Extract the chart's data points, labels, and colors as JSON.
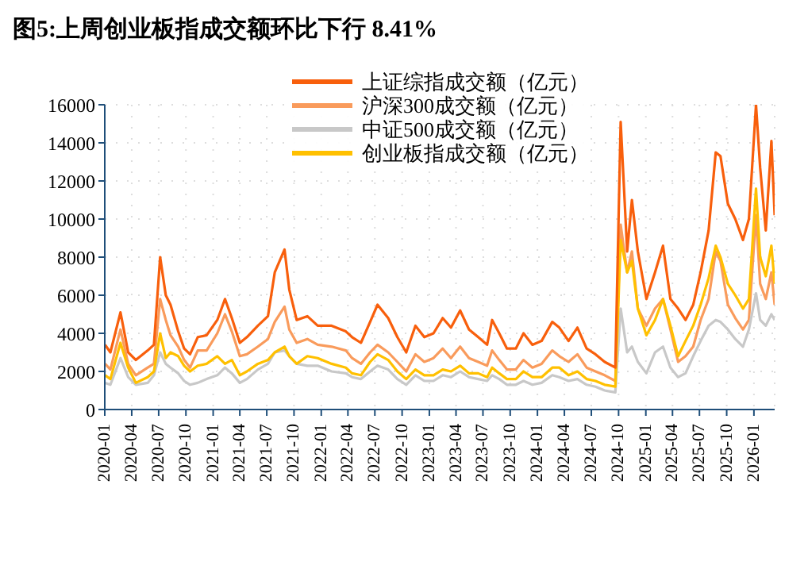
{
  "chart_data": {
    "type": "line",
    "title": "图5:上周创业板指成交额环比下行 8.41%",
    "x": [
      "2020-01-02",
      "2020-01-20",
      "2020-02-23",
      "2020-03-20",
      "2020-04-15",
      "2020-05-25",
      "2020-06-15",
      "2020-07-06",
      "2020-07-25",
      "2020-08-10",
      "2020-09-05",
      "2020-09-25",
      "2020-10-15",
      "2020-11-10",
      "2020-12-10",
      "2021-01-15",
      "2021-02-10",
      "2021-03-05",
      "2021-04-01",
      "2021-04-25",
      "2021-06-01",
      "2021-07-05",
      "2021-07-28",
      "2021-08-30",
      "2021-09-15",
      "2021-10-10",
      "2021-11-15",
      "2021-12-20",
      "2022-02-05",
      "2022-03-25",
      "2022-04-15",
      "2022-05-15",
      "2022-06-15",
      "2022-07-10",
      "2022-08-15",
      "2022-09-15",
      "2022-10-15",
      "2022-11-15",
      "2022-12-15",
      "2023-01-15",
      "2023-02-15",
      "2023-03-15",
      "2023-04-15",
      "2023-05-15",
      "2023-06-15",
      "2023-07-15",
      "2023-08-01",
      "2023-08-25",
      "2023-09-20",
      "2023-10-20",
      "2023-11-15",
      "2023-12-15",
      "2024-01-15",
      "2024-02-20",
      "2024-03-15",
      "2024-04-15",
      "2024-05-15",
      "2024-06-15",
      "2024-07-15",
      "2024-08-15",
      "2024-09-20",
      "2024-10-08",
      "2024-10-30",
      "2024-11-15",
      "2024-12-05",
      "2025-01-03",
      "2025-02-01",
      "2025-02-28",
      "2025-03-25",
      "2025-04-20",
      "2025-05-15",
      "2025-06-10",
      "2025-07-05",
      "2025-08-01",
      "2025-08-25",
      "2025-09-10",
      "2025-10-05",
      "2025-10-30",
      "2025-11-25",
      "2025-12-15",
      "2026-01-08",
      "2026-01-22",
      "2026-02-10",
      "2026-03-01",
      "2026-03-12"
    ],
    "series": [
      {
        "name": "上证综指成交额（亿元）",
        "color": "#f85f0c",
        "values": [
          3400,
          3000,
          5100,
          3000,
          2600,
          3100,
          3400,
          8000,
          6000,
          5500,
          4100,
          3200,
          2900,
          3800,
          3900,
          4700,
          5800,
          4800,
          3500,
          3800,
          4400,
          4900,
          7200,
          8400,
          6300,
          4700,
          4900,
          4400,
          4400,
          4100,
          3800,
          3500,
          4600,
          5500,
          4800,
          3800,
          3000,
          4400,
          3800,
          4000,
          4800,
          4300,
          5200,
          4200,
          3800,
          3400,
          4700,
          4000,
          3200,
          3200,
          4000,
          3400,
          3600,
          4600,
          4300,
          3600,
          4300,
          3200,
          2900,
          2500,
          2200,
          15100,
          8300,
          11000,
          8300,
          5800,
          7200,
          8600,
          5800,
          5300,
          4700,
          5500,
          7200,
          9400,
          13500,
          13300,
          10800,
          10000,
          8900,
          10000,
          16000,
          12700,
          9400,
          14100,
          10200
        ]
      },
      {
        "name": "沪深300成交额（亿元）",
        "color": "#f99b5c",
        "values": [
          2400,
          2100,
          4200,
          2400,
          1800,
          2200,
          2400,
          5800,
          4700,
          3900,
          3300,
          2600,
          2200,
          3100,
          3100,
          4000,
          5000,
          4100,
          2800,
          2900,
          3300,
          3700,
          4600,
          5400,
          4200,
          3500,
          3700,
          3400,
          3300,
          3100,
          2700,
          2400,
          3000,
          3400,
          3000,
          2500,
          2000,
          2900,
          2500,
          2700,
          3200,
          2700,
          3300,
          2700,
          2500,
          2300,
          3100,
          2600,
          2100,
          2100,
          2600,
          2200,
          2400,
          3100,
          2800,
          2500,
          2900,
          2200,
          2000,
          1800,
          1500,
          9700,
          7200,
          8300,
          5300,
          4400,
          5300,
          5800,
          4200,
          2500,
          2800,
          3300,
          4700,
          5800,
          8300,
          7800,
          5500,
          4800,
          4200,
          4700,
          10200,
          6600,
          5800,
          7200,
          5500
        ]
      },
      {
        "name": "中证500成交额（亿元）",
        "color": "#c8c8c8",
        "values": [
          1400,
          1300,
          2700,
          1700,
          1300,
          1400,
          1800,
          3000,
          2400,
          2200,
          1900,
          1500,
          1300,
          1400,
          1600,
          1800,
          2200,
          1900,
          1400,
          1600,
          2100,
          2400,
          3000,
          3100,
          2800,
          2400,
          2300,
          2300,
          2000,
          1900,
          1700,
          1600,
          2000,
          2300,
          2100,
          1600,
          1300,
          1800,
          1500,
          1500,
          1800,
          1700,
          2000,
          1700,
          1600,
          1500,
          1800,
          1600,
          1300,
          1300,
          1500,
          1300,
          1400,
          1800,
          1700,
          1500,
          1600,
          1300,
          1200,
          1000,
          900,
          5300,
          3000,
          3300,
          2500,
          1900,
          3000,
          3300,
          2200,
          1700,
          1900,
          2800,
          3600,
          4400,
          4700,
          4600,
          4200,
          3700,
          3300,
          4200,
          6100,
          4700,
          4400,
          5000,
          4700
        ]
      },
      {
        "name": "创业板指成交额（亿元）",
        "color": "#ffc000",
        "values": [
          1800,
          1600,
          3500,
          2200,
          1400,
          1700,
          2000,
          4000,
          2700,
          3000,
          2800,
          2300,
          2000,
          2300,
          2400,
          2800,
          2400,
          2600,
          1800,
          2000,
          2400,
          2600,
          3000,
          3300,
          2800,
          2400,
          2800,
          2700,
          2400,
          2200,
          1900,
          1800,
          2500,
          2900,
          2600,
          2000,
          1600,
          2100,
          1800,
          1800,
          2100,
          2000,
          2300,
          1900,
          1900,
          1700,
          2200,
          1900,
          1600,
          1600,
          2000,
          1700,
          1700,
          2200,
          2200,
          1800,
          2000,
          1600,
          1500,
          1300,
          1200,
          8900,
          7200,
          7800,
          5300,
          3900,
          4700,
          5800,
          4400,
          2800,
          3600,
          4400,
          5500,
          6900,
          8600,
          8000,
          6600,
          6000,
          5300,
          5800,
          11600,
          8000,
          7000,
          8600,
          6600
        ]
      }
    ],
    "xlim": [
      "2020-01-01",
      "2026-03-12"
    ],
    "xticks": [
      "2020-01",
      "2020-04",
      "2020-07",
      "2020-10",
      "2021-01",
      "2021-04",
      "2021-07",
      "2021-10",
      "2022-01",
      "2022-04",
      "2022-07",
      "2022-10",
      "2023-01",
      "2023-04",
      "2023-07",
      "2023-10",
      "2024-01",
      "2024-04",
      "2024-07",
      "2024-10",
      "2025-01",
      "2025-04",
      "2025-07",
      "2025-10",
      "2026-01"
    ],
    "ylim": [
      0,
      16000
    ],
    "yticks": [
      0,
      2000,
      4000,
      6000,
      8000,
      10000,
      12000,
      14000,
      16000
    ],
    "grid": true,
    "legend": "top right",
    "marker": "none",
    "line_style": "solid"
  }
}
